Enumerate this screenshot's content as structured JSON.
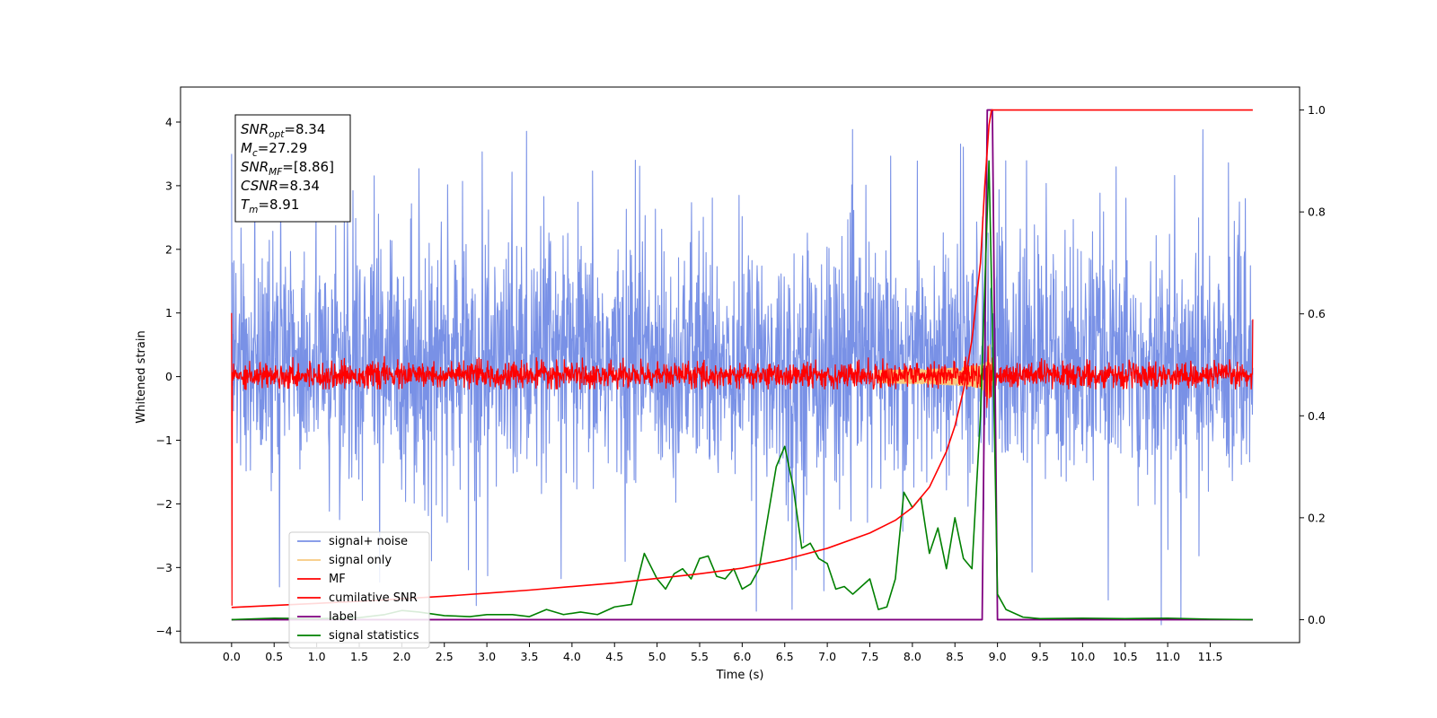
{
  "chart_data": {
    "type": "line",
    "title": "",
    "xlabel": "Time (s)",
    "ylabel": "Whitened strain",
    "ylabel_right": "",
    "xlim": [
      -0.6,
      12.55
    ],
    "ylim": [
      -4.18,
      4.55
    ],
    "y2lim": [
      -0.045,
      1.045
    ],
    "x_ticks": [
      "0.0",
      "0.5",
      "1.0",
      "1.5",
      "2.0",
      "2.5",
      "3.0",
      "3.5",
      "4.0",
      "4.5",
      "5.0",
      "5.5",
      "6.0",
      "6.5",
      "7.0",
      "7.5",
      "8.0",
      "8.5",
      "9.0",
      "9.5",
      "10.0",
      "10.5",
      "11.0",
      "11.5"
    ],
    "y_ticks": [
      "4",
      "3",
      "2",
      "1",
      "0",
      "−1",
      "−2",
      "−3",
      "−4"
    ],
    "y2_ticks": [
      "1.0",
      "0.8",
      "0.6",
      "0.4",
      "0.2",
      "0.0"
    ],
    "grid": false,
    "legend_position": "lower-left",
    "annotation": {
      "lines": [
        {
          "main": "SNR",
          "sub": "opt",
          "rest": "=8.34"
        },
        {
          "main": "M",
          "sub": "c",
          "rest": "=27.29"
        },
        {
          "main": "SNR",
          "sub": "MF",
          "rest": "=[8.86]"
        },
        {
          "main": "CSNR",
          "sub": "",
          "rest": "=8.34"
        },
        {
          "main": "T",
          "sub": "m",
          "rest": "=8.91"
        }
      ]
    },
    "series": [
      {
        "name": "signal+ noise",
        "color": "#7991e6",
        "axis": "left",
        "kind": "noise",
        "x_range": [
          0,
          12
        ],
        "envelope_hi": 2.8,
        "envelope_lo": -2.5,
        "peak_max": 4.15,
        "peak_min": -3.9
      },
      {
        "name": "signal only",
        "color": "#f7c97f",
        "axis": "left",
        "kind": "chirp",
        "merger_time": 8.91,
        "peak": 0.9
      },
      {
        "name": "MF",
        "color": "#ff0000",
        "axis": "left",
        "kind": "noise",
        "x_range": [
          0,
          12
        ],
        "envelope_hi": 0.25,
        "envelope_lo": -0.2,
        "edge_values": [
          1.0,
          -3.6,
          0.9
        ]
      },
      {
        "name": "cumilative SNR",
        "color": "#ff0000",
        "axis": "right",
        "x": [
          0,
          0.5,
          1,
          1.5,
          2,
          2.5,
          3,
          3.5,
          4,
          4.5,
          5,
          5.5,
          6,
          6.5,
          7,
          7.5,
          7.8,
          8.0,
          8.2,
          8.4,
          8.5,
          8.6,
          8.7,
          8.8,
          8.85,
          8.9,
          8.93,
          9.0,
          10,
          11,
          12
        ],
        "values": [
          0.024,
          0.028,
          0.032,
          0.036,
          0.041,
          0.046,
          0.052,
          0.058,
          0.065,
          0.072,
          0.081,
          0.09,
          0.101,
          0.118,
          0.14,
          0.17,
          0.195,
          0.22,
          0.26,
          0.33,
          0.38,
          0.45,
          0.55,
          0.7,
          0.85,
          0.97,
          1.0,
          1.0,
          1.0,
          1.0,
          1.0
        ]
      },
      {
        "name": "label",
        "color": "#800080",
        "axis": "right",
        "x": [
          0,
          8.82,
          8.88,
          8.94,
          9.0,
          12
        ],
        "values": [
          0,
          0,
          1.0,
          1.0,
          0,
          0
        ]
      },
      {
        "name": "signal statistics",
        "color": "#008000",
        "axis": "right",
        "x": [
          0,
          0.5,
          1.0,
          1.5,
          1.8,
          2.0,
          2.2,
          2.5,
          2.8,
          3.0,
          3.3,
          3.5,
          3.7,
          3.9,
          4.1,
          4.3,
          4.5,
          4.7,
          4.85,
          5.0,
          5.1,
          5.2,
          5.3,
          5.4,
          5.5,
          5.6,
          5.7,
          5.8,
          5.9,
          6.0,
          6.1,
          6.2,
          6.3,
          6.4,
          6.5,
          6.6,
          6.7,
          6.8,
          6.9,
          7.0,
          7.1,
          7.2,
          7.3,
          7.4,
          7.5,
          7.6,
          7.7,
          7.8,
          7.9,
          8.0,
          8.1,
          8.2,
          8.3,
          8.4,
          8.5,
          8.6,
          8.7,
          8.8,
          8.9,
          8.95,
          9.0,
          9.1,
          9.3,
          9.5,
          10,
          10.5,
          11,
          11.5,
          12
        ],
        "values": [
          0.0,
          0.003,
          0.002,
          0.004,
          0.01,
          0.018,
          0.015,
          0.008,
          0.006,
          0.01,
          0.01,
          0.006,
          0.02,
          0.01,
          0.015,
          0.01,
          0.025,
          0.03,
          0.13,
          0.08,
          0.06,
          0.09,
          0.1,
          0.08,
          0.12,
          0.125,
          0.085,
          0.08,
          0.1,
          0.06,
          0.07,
          0.1,
          0.2,
          0.3,
          0.34,
          0.26,
          0.14,
          0.15,
          0.12,
          0.11,
          0.06,
          0.065,
          0.05,
          0.065,
          0.08,
          0.02,
          0.025,
          0.08,
          0.25,
          0.22,
          0.24,
          0.13,
          0.18,
          0.1,
          0.2,
          0.12,
          0.1,
          0.4,
          0.9,
          0.5,
          0.05,
          0.02,
          0.005,
          0.002,
          0.003,
          0.002,
          0.003,
          0.001,
          0.0
        ]
      }
    ]
  }
}
